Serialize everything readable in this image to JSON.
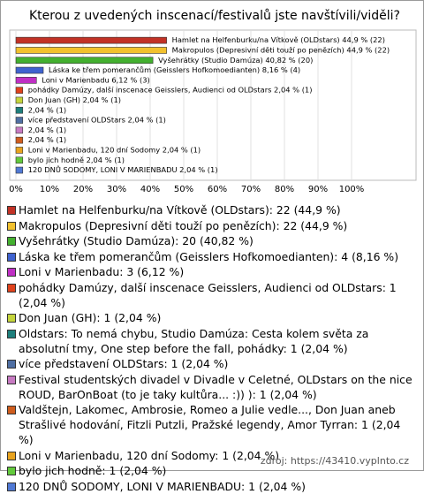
{
  "chart_data": {
    "type": "bar",
    "orientation": "horizontal",
    "title": "Kterou z uvedených inscenací/festivalů jste navštívili/viděli?",
    "values": [
      44.9,
      44.9,
      40.82,
      8.16,
      6.12,
      2.04,
      2.04,
      2.04,
      2.04,
      2.04,
      2.04,
      2.04,
      2.04,
      2.04
    ],
    "value_labels": [
      "Hamlet na Helfenburku/na Vítkově (OLDstars) 44,9 % (22)",
      "Makropulos (Depresivní děti touží po penězích) 44,9 % (22)",
      "Vyšehrátky (Studio Damúza) 40,82 % (20)",
      "Láska ke třem pomerančům (Geisslers Hofkomoedianten) 8,16 % (4)",
      "Loni v Marienbadu 6,12 % (3)",
      "pohádky Damúzy, další inscenace Geisslers, Audienci od OLDstars 2,04 % (1)",
      "Don Juan (GH) 2,04 % (1)",
      "2,04 % (1)",
      "více představení OLDStars 2,04 % (1)",
      "2,04 % (1)",
      "2,04 % (1)",
      "Loni v Marienbadu, 120 dní Sodomy 2,04 % (1)",
      "bylo jich hodně 2,04 % (1)",
      "120 DNŮ SODOMY, LONI V MARIENBADU 2,04 % (1)"
    ],
    "colors": [
      "#c23226",
      "#f2c12e",
      "#43b02f",
      "#3f62cf",
      "#bf2fc4",
      "#e0421c",
      "#c4d43c",
      "#1e7f7c",
      "#4f6fa3",
      "#c77ac2",
      "#cf5d1e",
      "#e8a31f",
      "#62c93c",
      "#5079d4"
    ],
    "legend": [
      "Hamlet na Helfenburku/na Vítkově (OLDstars): 22 (44,9 %)",
      "Makropulos (Depresivní děti touží po penězích): 22 (44,9 %)",
      "Vyšehrátky (Studio Damúza): 20 (40,82 %)",
      "Láska ke třem pomerančům (Geisslers Hofkomoedianten): 4 (8,16 %)",
      "Loni v Marienbadu: 3 (6,12 %)",
      "pohádky Damúzy, další inscenace Geisslers, Audienci od OLDstars: 1 (2,04 %)",
      "Don Juan (GH): 1 (2,04 %)",
      "Oldstars: To nemá chybu, Studio Damúza: Cesta kolem světa za absolutní tmy, One step before the fall, pohádky: 1 (2,04 %)",
      "více představení OLDStars: 1 (2,04 %)",
      "Festival studentských divadel v Divadle v Celetné, OLDstars on the nice ROUD, BarOnBoat (to je taky kultůra... :)) ): 1 (2,04 %)",
      "Valdštejn, Lakomec, Ambrosie, Romeo a Julie vedle..., Don Juan aneb Strašlivé hodování, Fitzli Putzli, Pražské legendy, Amor Tyrran: 1 (2,04 %)",
      "Loni v Marienbadu, 120 dní Sodomy: 1 (2,04 %)",
      "bylo jich hodně: 1 (2,04 %)",
      "120 DNŮ SODOMY, LONI V MARIENBADU: 1 (2,04 %)"
    ],
    "xlim": [
      0,
      100
    ],
    "xticks": [
      {
        "value": 0,
        "label": "0%"
      },
      {
        "value": 10,
        "label": "10%"
      },
      {
        "value": 20,
        "label": "20%"
      },
      {
        "value": 30,
        "label": "30%"
      },
      {
        "value": 40,
        "label": "40%"
      },
      {
        "value": 50,
        "label": "50%"
      },
      {
        "value": 60,
        "label": "60%"
      },
      {
        "value": 70,
        "label": "70%"
      },
      {
        "value": 80,
        "label": "80%"
      },
      {
        "value": 90,
        "label": "90%"
      },
      {
        "value": 100,
        "label": "100%"
      }
    ],
    "grid": true
  },
  "source": "zdroj: https://43410.vyplnto.cz"
}
